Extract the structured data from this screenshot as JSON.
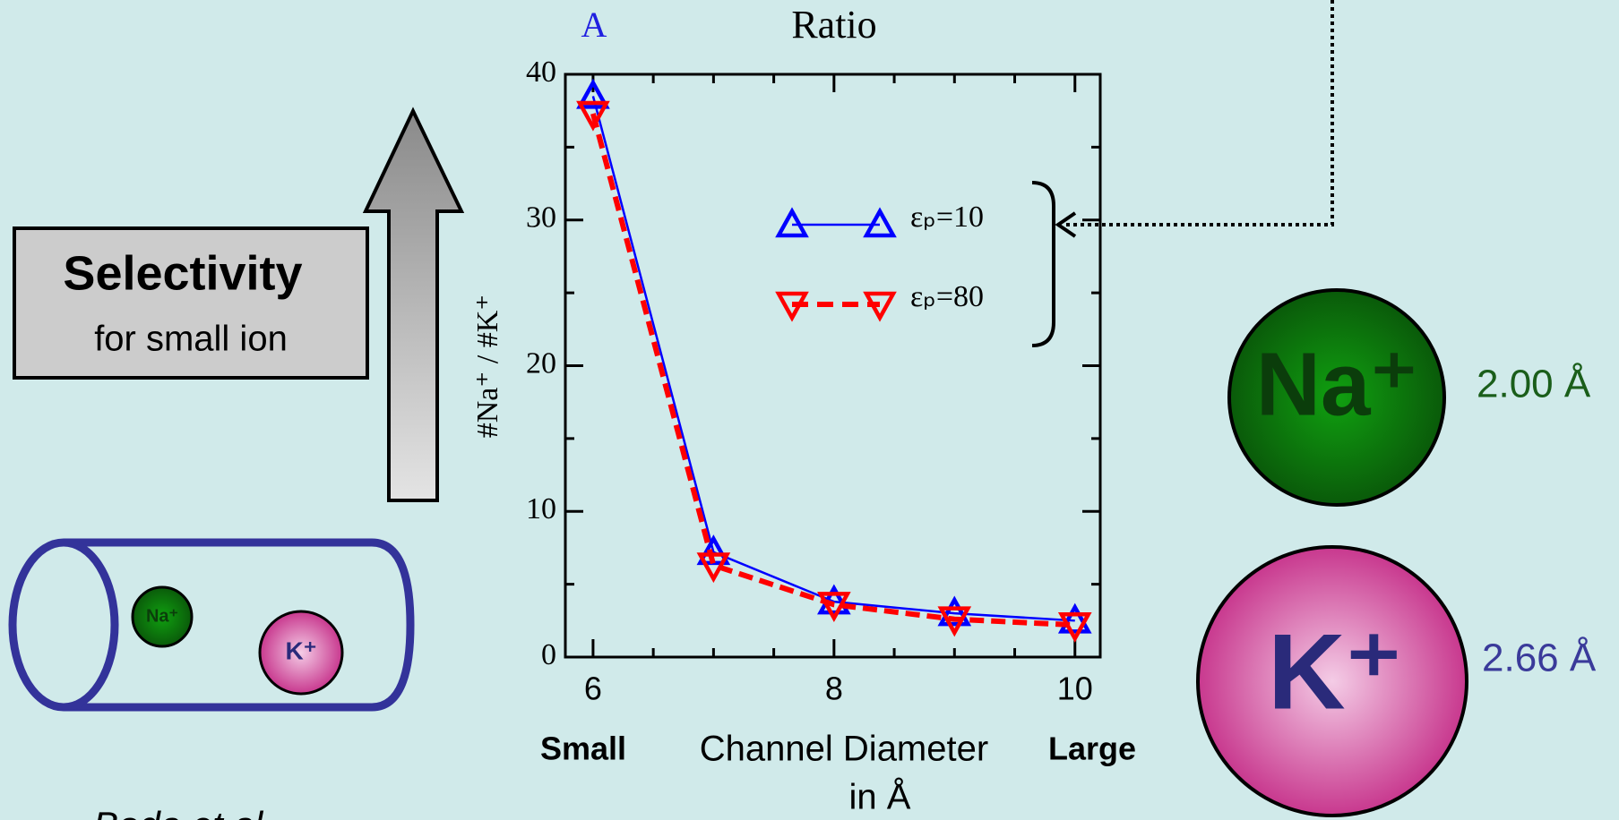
{
  "chart_data": {
    "type": "line",
    "panel_label": "A",
    "title": "Ratio",
    "y_label": "#Na⁺ / #K⁺",
    "x_label": [
      "Channel Diameter",
      "in Å"
    ],
    "x_range_labels": [
      "Small",
      "Large"
    ],
    "x": [
      6,
      7,
      8,
      9,
      10
    ],
    "series": [
      {
        "name": "εₚ=10",
        "color": "#0000ff",
        "style": "solid",
        "marker": "triangle-up",
        "values": [
          38.5,
          7.2,
          3.8,
          3.0,
          2.5
        ]
      },
      {
        "name": "εₚ=80",
        "color": "#ff0000",
        "style": "dashed",
        "marker": "triangle-down",
        "values": [
          37.3,
          6.3,
          3.6,
          2.6,
          2.2
        ]
      }
    ],
    "xlim": [
      5.77,
      10.21
    ],
    "xticks": [
      6,
      8,
      10
    ],
    "ylim": [
      0,
      40
    ],
    "yticks": [
      0,
      10,
      20,
      30,
      40
    ]
  },
  "slide": {
    "selectivity": {
      "title": "Selectivity",
      "subtitle": "for small ion"
    },
    "ions": [
      {
        "symbol": "Na⁺",
        "radius": "2.00 Å"
      },
      {
        "symbol": "K⁺",
        "radius": "2.66 Å"
      }
    ],
    "citation": "Boda et al."
  }
}
